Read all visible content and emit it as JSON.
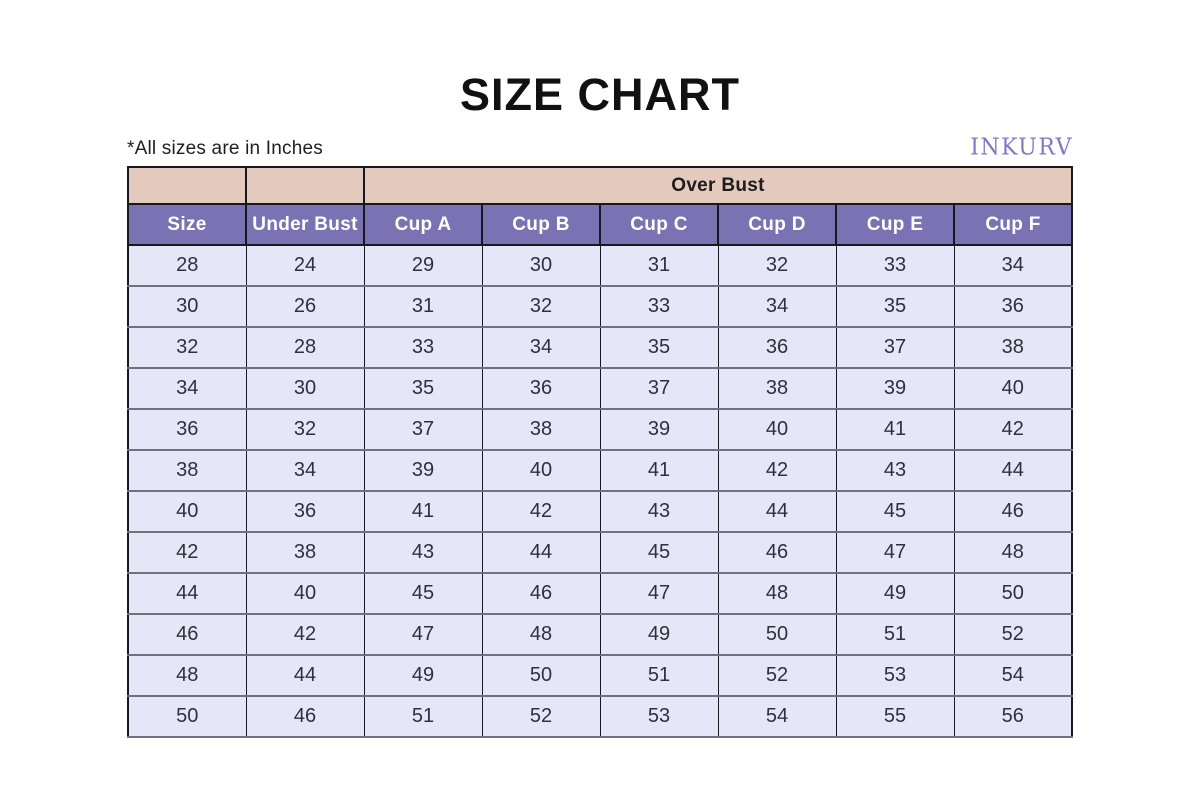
{
  "page": {
    "title": "SIZE CHART",
    "note": "*All sizes are in Inches",
    "brand": "INKURV"
  },
  "colors": {
    "group_header_bg": "#e4c9bd",
    "column_header_bg": "#7a72b2",
    "column_header_text": "#ffffff",
    "data_cell_bg": "#e7e6f8",
    "data_text": "#30303a",
    "brand_text": "#8377c3",
    "vertical_border": "#18181f",
    "horizontal_border": "#70707e"
  },
  "chart_data": {
    "type": "table",
    "title": "SIZE CHART",
    "note": "*All sizes are in Inches",
    "group_header": "Over Bust",
    "group_header_span_columns": [
      "Cup A",
      "Cup B",
      "Cup C",
      "Cup D",
      "Cup E",
      "Cup F"
    ],
    "columns": [
      "Size",
      "Under Bust",
      "Cup A",
      "Cup B",
      "Cup C",
      "Cup D",
      "Cup E",
      "Cup F"
    ],
    "rows": [
      [
        28,
        24,
        29,
        30,
        31,
        32,
        33,
        34
      ],
      [
        30,
        26,
        31,
        32,
        33,
        34,
        35,
        36
      ],
      [
        32,
        28,
        33,
        34,
        35,
        36,
        37,
        38
      ],
      [
        34,
        30,
        35,
        36,
        37,
        38,
        39,
        40
      ],
      [
        36,
        32,
        37,
        38,
        39,
        40,
        41,
        42
      ],
      [
        38,
        34,
        39,
        40,
        41,
        42,
        43,
        44
      ],
      [
        40,
        36,
        41,
        42,
        43,
        44,
        45,
        46
      ],
      [
        42,
        38,
        43,
        44,
        45,
        46,
        47,
        48
      ],
      [
        44,
        40,
        45,
        46,
        47,
        48,
        49,
        50
      ],
      [
        46,
        42,
        47,
        48,
        49,
        50,
        51,
        52
      ],
      [
        48,
        44,
        49,
        50,
        51,
        52,
        53,
        54
      ],
      [
        50,
        46,
        51,
        52,
        53,
        54,
        55,
        56
      ]
    ]
  }
}
